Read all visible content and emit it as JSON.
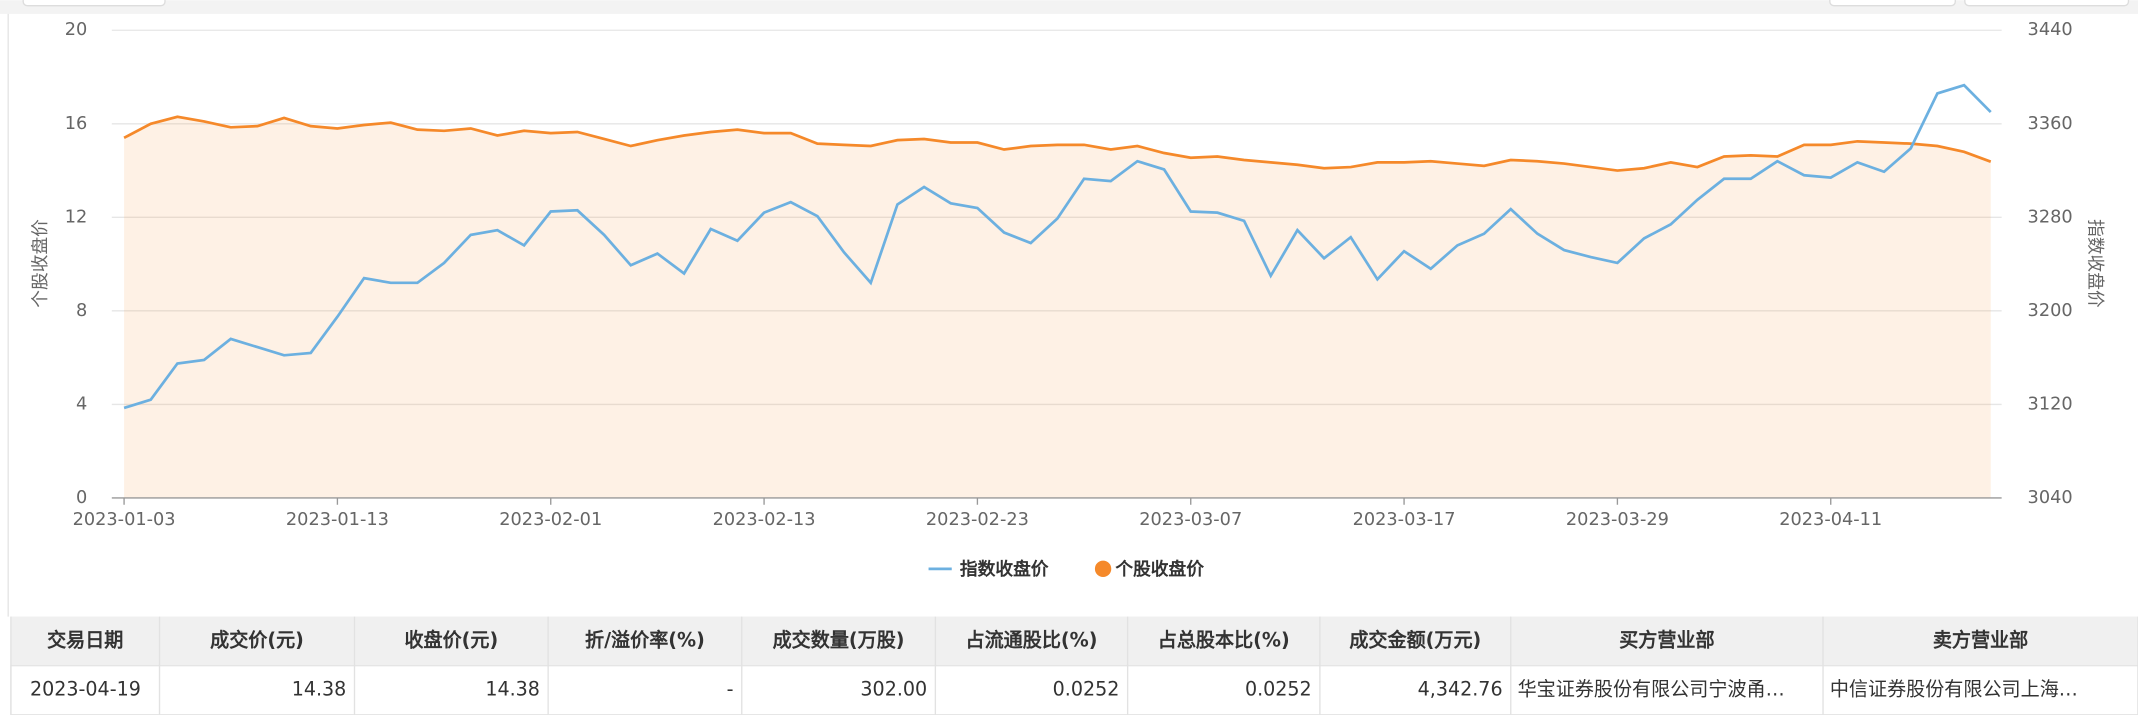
{
  "chart_data": {
    "type": "line",
    "y_label": "个股收盘价",
    "y2_label": "指数收盘价",
    "categories": [
      "2023-01-03",
      null,
      null,
      null,
      null,
      null,
      null,
      null,
      "2023-01-13",
      null,
      null,
      null,
      null,
      null,
      null,
      null,
      "2023-02-01",
      null,
      null,
      null,
      null,
      null,
      null,
      null,
      "2023-02-13",
      null,
      null,
      null,
      null,
      null,
      null,
      null,
      "2023-02-23",
      null,
      null,
      null,
      null,
      null,
      null,
      null,
      "2023-03-07",
      null,
      null,
      null,
      null,
      null,
      null,
      null,
      "2023-03-17",
      null,
      null,
      null,
      null,
      null,
      null,
      null,
      "2023-03-29",
      null,
      null,
      null,
      null,
      null,
      null,
      null,
      "2023-04-11",
      null,
      null,
      null,
      null,
      null,
      null
    ],
    "series": [
      {
        "name": "指数收盘价",
        "color": "#6cb0e0",
        "axis": "y2",
        "values": [
          3117,
          3124,
          3155,
          3158,
          3176,
          3169,
          3162,
          3164,
          3195,
          3228,
          3224,
          3224,
          3241,
          3265,
          3269,
          3256,
          3285,
          3286,
          3265,
          3239,
          3249,
          3232,
          3270,
          3260,
          3284,
          3293,
          3281,
          3250,
          3224,
          3291,
          3306,
          3292,
          3288,
          3267,
          3258,
          3279,
          3313,
          3311,
          3328,
          3321,
          3285,
          3284,
          3277,
          3230,
          3269,
          3245,
          3263,
          3227,
          3251,
          3236,
          3256,
          3266,
          3287,
          3266,
          3252,
          3246,
          3241,
          3262,
          3274,
          3295,
          3313,
          3313,
          3328,
          3316,
          3314,
          3327,
          3319,
          3339,
          3386,
          3393,
          3370
        ]
      },
      {
        "name": "个股收盘价",
        "color": "#f5892a",
        "area": true,
        "values": [
          15.4,
          16.0,
          16.3,
          16.1,
          15.85,
          15.9,
          16.25,
          15.9,
          15.8,
          15.95,
          16.05,
          15.75,
          15.7,
          15.8,
          15.5,
          15.7,
          15.6,
          15.65,
          15.35,
          15.05,
          15.3,
          15.5,
          15.65,
          15.75,
          15.6,
          15.6,
          15.15,
          15.1,
          15.05,
          15.3,
          15.35,
          15.2,
          15.2,
          14.9,
          15.05,
          15.1,
          15.1,
          14.9,
          15.05,
          14.75,
          14.55,
          14.6,
          14.45,
          14.35,
          14.25,
          14.1,
          14.15,
          14.35,
          14.35,
          14.4,
          14.3,
          14.2,
          14.45,
          14.4,
          14.3,
          14.15,
          14.0,
          14.1,
          14.35,
          14.15,
          14.6,
          14.65,
          14.6,
          15.1,
          15.1,
          15.25,
          15.2,
          15.15,
          15.05,
          14.8,
          14.38
        ]
      }
    ],
    "ylim": [
      0,
      20
    ],
    "yticks": [
      0,
      4,
      8,
      12,
      16,
      20
    ],
    "y2lim": [
      3040,
      3440
    ],
    "y2ticks": [
      3040,
      3120,
      3200,
      3280,
      3360,
      3440
    ],
    "grid": true,
    "legend": "bottom"
  },
  "table": {
    "columns": [
      "交易日期",
      "成交价(元)",
      "收盘价(元)",
      "折/溢价率(%)",
      "成交数量(万股)",
      "占流通股比(%)",
      "占总股本比(%)",
      "成交金额(万元)",
      "买方营业部",
      "卖方营业部"
    ],
    "rows": [
      [
        "2023-04-19",
        "14.38",
        "14.38",
        "-",
        "302.00",
        "0.0252",
        "0.0252",
        "4,342.76",
        "华宝证券股份有限公司宁波甬…",
        "中信证券股份有限公司上海…"
      ]
    ]
  }
}
